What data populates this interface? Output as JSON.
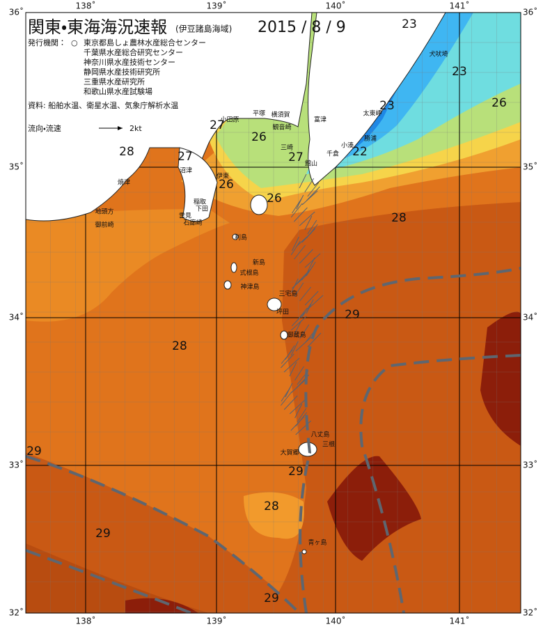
{
  "header": {
    "title": "関東・東海海況速報",
    "subtitle": "(伊豆諸島海域)",
    "date": "2015 / 8 / 9"
  },
  "agencies": {
    "label": "発行機関：",
    "marker": "○",
    "names": [
      "東京都島しょ農林水産総合センター",
      "千葉県水産総合研究センター",
      "神奈川県水産技術センター",
      "静岡県水産技術研究所",
      "三重県水産研究所",
      "和歌山県水産試験場"
    ]
  },
  "source": "資料: 船舶水温、衛星水温、気象庁解析水温",
  "legend": {
    "label": "流向・流速",
    "arrow_label": "2kt"
  },
  "axes": {
    "longitude": [
      "138˚",
      "139˚",
      "140˚",
      "141˚"
    ],
    "latitude": [
      "36˚",
      "35˚",
      "34˚",
      "33˚",
      "32˚"
    ]
  },
  "temperature_labels": [
    "23",
    "23",
    "23",
    "26",
    "27",
    "28",
    "27",
    "26",
    "27",
    "22",
    "26",
    "26",
    "28",
    "29",
    "28",
    "29",
    "29",
    "28",
    "29",
    "29"
  ],
  "place_names": [
    "犬吠埼",
    "太東岬",
    "勝浦",
    "小湊",
    "千倉",
    "館山",
    "富津",
    "観音崎",
    "横須賀",
    "平塚",
    "小田原",
    "三崎",
    "伊東",
    "稲取",
    "下田",
    "雲見",
    "石廊崎",
    "沼津",
    "焼津",
    "地頭方",
    "御前崎",
    "利島",
    "新島",
    "式根島",
    "神津島",
    "三宅島",
    "坪田",
    "御蔵島",
    "八丈島",
    "三根",
    "大賀郷",
    "青ヶ島"
  ]
}
